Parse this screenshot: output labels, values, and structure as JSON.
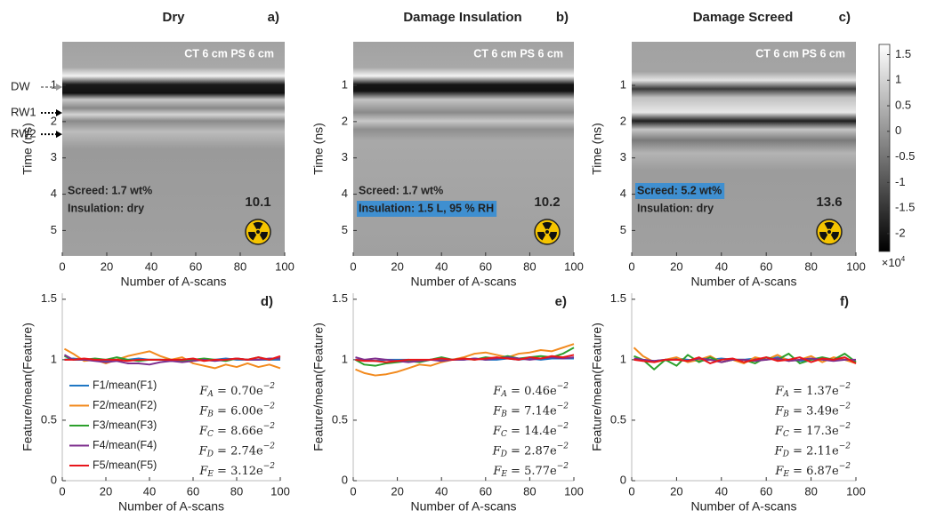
{
  "chart_data": [
    {
      "type": "image",
      "title": "Dry",
      "panel": "a)",
      "xlabel": "Number of A-scans",
      "ylabel": "Time (ns)",
      "xlim": [
        0,
        100
      ],
      "ylim": [
        -0.2,
        5.7
      ],
      "y_reversed": true,
      "xticks": [
        0,
        20,
        40,
        60,
        80,
        100
      ],
      "yticks": [
        1,
        2,
        3,
        4,
        5
      ],
      "settings": "CT 6 cm PS 6 cm",
      "notes": [
        {
          "text": "Screed: 1.7 wt%",
          "highlight": false
        },
        {
          "text": "Insulation: dry",
          "highlight": false
        }
      ],
      "score": 10.1,
      "markers": [
        {
          "label": "DW",
          "time": 1.05,
          "color": "#999999"
        },
        {
          "label": "RW1",
          "time": 1.76,
          "color": "#000000"
        },
        {
          "label": "RW2",
          "time": 2.35,
          "color": "#000000"
        }
      ]
    },
    {
      "type": "image",
      "title": "Damage Insulation",
      "panel": "b)",
      "xlabel": "Number of A-scans",
      "ylabel": "Time (ns)",
      "xlim": [
        0,
        100
      ],
      "ylim": [
        -0.2,
        5.7
      ],
      "y_reversed": true,
      "xticks": [
        0,
        20,
        40,
        60,
        80,
        100
      ],
      "yticks": [
        1,
        2,
        3,
        4,
        5
      ],
      "settings": "CT 6 cm PS 6 cm",
      "notes": [
        {
          "text": "Screed: 1.7 wt%",
          "highlight": false
        },
        {
          "text": "Insulation: 1.5 L, 95 % RH",
          "highlight": true
        }
      ],
      "score": 10.2
    },
    {
      "type": "image",
      "title": "Damage Screed",
      "panel": "c)",
      "xlabel": "Number of A-scans",
      "ylabel": "Time (ns)",
      "xlim": [
        0,
        100
      ],
      "ylim": [
        -0.2,
        5.7
      ],
      "y_reversed": true,
      "xticks": [
        0,
        20,
        40,
        60,
        80,
        100
      ],
      "yticks": [
        1,
        2,
        3,
        4,
        5
      ],
      "settings": "CT 6 cm PS 6 cm",
      "notes": [
        {
          "text": "Screed: 5.2 wt%",
          "highlight": true
        },
        {
          "text": "Insulation: dry",
          "highlight": false
        }
      ],
      "score": 13.6
    },
    {
      "type": "colorbar",
      "ylim": [
        -2.35,
        1.7
      ],
      "yticks": [
        1.5,
        1,
        0.5,
        0,
        -0.5,
        -1,
        -1.5,
        -2
      ],
      "multiplier": {
        "base": "×10",
        "exponent": "4"
      }
    },
    {
      "type": "line",
      "panel": "d)",
      "xlabel": "Number of A-scans",
      "ylabel": "Feature/mean(Feature)",
      "xlim": [
        0,
        100
      ],
      "ylim": [
        0,
        1.55
      ],
      "xticks": [
        0,
        20,
        40,
        60,
        80,
        100
      ],
      "yticks": [
        0,
        0.5,
        1,
        1.5
      ],
      "legend": "lower left",
      "x": [
        1,
        5,
        10,
        15,
        20,
        25,
        30,
        35,
        40,
        45,
        50,
        55,
        60,
        65,
        70,
        75,
        80,
        85,
        90,
        95,
        100
      ],
      "series": [
        {
          "name": "F1/mean(F1)",
          "color": "#1f77c4",
          "values": [
            1.0,
            1.01,
            1.0,
            1.0,
            0.99,
            1.0,
            1.0,
            1.01,
            1.0,
            1.0,
            0.99,
            1.0,
            1.0,
            1.0,
            1.0,
            1.01,
            1.0,
            1.0,
            1.0,
            1.0,
            1.0
          ]
        },
        {
          "name": "F2/mean(F2)",
          "color": "#f28a1e",
          "values": [
            1.09,
            1.05,
            0.99,
            1.0,
            0.97,
            1.0,
            1.03,
            1.05,
            1.07,
            1.03,
            1.0,
            1.02,
            0.97,
            0.95,
            0.93,
            0.96,
            0.94,
            0.97,
            0.94,
            0.96,
            0.93
          ]
        },
        {
          "name": "F3/mean(F3)",
          "color": "#2ca02c",
          "values": [
            1.03,
            1.0,
            1.0,
            1.01,
            1.0,
            1.02,
            1.0,
            0.99,
            1.0,
            1.0,
            1.0,
            0.99,
            1.0,
            1.01,
            1.0,
            0.99,
            1.01,
            1.0,
            1.02,
            1.0,
            1.02
          ]
        },
        {
          "name": "F4/mean(F4)",
          "color": "#7e2f8e",
          "values": [
            1.04,
            1.0,
            1.0,
            0.99,
            0.98,
            0.99,
            0.97,
            0.97,
            0.96,
            0.98,
            0.99,
            0.98,
            0.99,
            1.0,
            0.99,
            1.0,
            1.01,
            1.0,
            1.0,
            1.01,
            1.01
          ]
        },
        {
          "name": "F5/mean(F5)",
          "color": "#e8161b",
          "values": [
            1.0,
            1.0,
            1.01,
            1.0,
            1.0,
            1.0,
            0.99,
            1.0,
            1.0,
            1.0,
            1.0,
            1.0,
            1.01,
            0.99,
            1.0,
            1.0,
            1.01,
            1.0,
            1.02,
            1.0,
            1.03
          ]
        }
      ],
      "annotations": [
        {
          "symbol": "F",
          "subscript": "A",
          "text": " = 0.70e",
          "exponent": "−2"
        },
        {
          "symbol": "F",
          "subscript": "B",
          "text": " = 6.00e",
          "exponent": "−2"
        },
        {
          "symbol": "F",
          "subscript": "C",
          "text": " = 8.66e",
          "exponent": "−2"
        },
        {
          "symbol": "F",
          "subscript": "D",
          "text": " = 2.74e",
          "exponent": "−2"
        },
        {
          "symbol": "F",
          "subscript": "E",
          "text": " = 3.12e",
          "exponent": "−2"
        }
      ]
    },
    {
      "type": "line",
      "panel": "e)",
      "xlabel": "Number of A-scans",
      "ylabel": "Feature/mean(Feature)",
      "xlim": [
        0,
        100
      ],
      "ylim": [
        0,
        1.55
      ],
      "xticks": [
        0,
        20,
        40,
        60,
        80,
        100
      ],
      "yticks": [
        0,
        0.5,
        1,
        1.5
      ],
      "x": [
        1,
        5,
        10,
        15,
        20,
        25,
        30,
        35,
        40,
        45,
        50,
        55,
        60,
        65,
        70,
        75,
        80,
        85,
        90,
        95,
        100
      ],
      "series": [
        {
          "color": "#1f77c4",
          "values": [
            1.0,
            1.0,
            0.99,
            1.0,
            1.0,
            1.0,
            0.99,
            1.0,
            1.0,
            1.0,
            1.0,
            1.01,
            1.0,
            1.0,
            1.01,
            1.0,
            1.01,
            1.0,
            1.01,
            1.01,
            1.01
          ]
        },
        {
          "color": "#f28a1e",
          "values": [
            0.92,
            0.89,
            0.87,
            0.88,
            0.9,
            0.93,
            0.96,
            0.95,
            0.98,
            1.0,
            1.02,
            1.05,
            1.06,
            1.04,
            1.02,
            1.05,
            1.06,
            1.08,
            1.07,
            1.1,
            1.13
          ]
        },
        {
          "color": "#2ca02c",
          "values": [
            1.0,
            0.96,
            0.95,
            0.97,
            0.98,
            0.99,
            0.98,
            1.0,
            1.02,
            1.0,
            1.01,
            1.0,
            1.02,
            1.01,
            1.03,
            1.01,
            1.02,
            1.03,
            1.02,
            1.05,
            1.1
          ]
        },
        {
          "color": "#7e2f8e",
          "values": [
            1.02,
            1.0,
            1.01,
            1.0,
            0.99,
            0.98,
            0.99,
            1.0,
            0.99,
            1.0,
            1.0,
            1.01,
            1.0,
            1.01,
            1.02,
            1.01,
            1.0,
            1.01,
            1.02,
            1.01,
            1.02
          ]
        },
        {
          "color": "#e8161b",
          "values": [
            1.0,
            0.99,
            0.99,
            0.98,
            0.99,
            1.0,
            1.0,
            1.0,
            1.01,
            1.0,
            1.01,
            1.0,
            1.01,
            1.02,
            1.01,
            1.0,
            1.02,
            1.01,
            1.03,
            1.02,
            1.04
          ]
        }
      ],
      "annotations": [
        {
          "symbol": "F",
          "subscript": "A",
          "text": " = 0.46e",
          "exponent": "−2"
        },
        {
          "symbol": "F",
          "subscript": "B",
          "text": " = 7.14e",
          "exponent": "−2"
        },
        {
          "symbol": "F",
          "subscript": "C",
          "text": " = 14.4e",
          "exponent": "−2"
        },
        {
          "symbol": "F",
          "subscript": "D",
          "text": " = 2.87e",
          "exponent": "−2"
        },
        {
          "symbol": "F",
          "subscript": "E",
          "text": " = 5.77e",
          "exponent": "−2"
        }
      ]
    },
    {
      "type": "line",
      "panel": "f)",
      "xlabel": "Number of A-scans",
      "ylabel": "Feature/mean(Feature)",
      "xlim": [
        0,
        100
      ],
      "ylim": [
        0,
        1.55
      ],
      "xticks": [
        0,
        20,
        40,
        60,
        80,
        100
      ],
      "yticks": [
        0,
        0.5,
        1,
        1.5
      ],
      "x": [
        1,
        5,
        10,
        15,
        20,
        25,
        30,
        35,
        40,
        45,
        50,
        55,
        60,
        65,
        70,
        75,
        80,
        85,
        90,
        95,
        100
      ],
      "series": [
        {
          "color": "#1f77c4",
          "values": [
            1.0,
            1.0,
            0.99,
            1.0,
            1.01,
            1.0,
            0.99,
            1.0,
            1.01,
            1.0,
            1.0,
            1.01,
            1.0,
            1.02,
            1.0,
            0.99,
            1.0,
            1.01,
            1.0,
            1.0,
            0.98
          ]
        },
        {
          "color": "#f28a1e",
          "values": [
            1.1,
            1.03,
            0.98,
            1.0,
            1.02,
            0.98,
            1.0,
            1.03,
            0.98,
            1.0,
            0.97,
            1.02,
            1.0,
            1.04,
            0.99,
            1.0,
            1.03,
            0.98,
            1.02,
            1.0,
            0.97
          ]
        },
        {
          "color": "#2ca02c",
          "values": [
            1.03,
            1.0,
            0.92,
            1.0,
            0.95,
            1.04,
            0.98,
            1.02,
            0.98,
            1.0,
            1.0,
            0.97,
            1.02,
            1.0,
            1.05,
            0.97,
            1.0,
            1.02,
            1.0,
            1.05,
            0.98
          ]
        },
        {
          "color": "#7e2f8e",
          "values": [
            1.01,
            1.0,
            0.99,
            1.0,
            1.0,
            0.99,
            1.01,
            1.0,
            0.98,
            1.0,
            1.0,
            0.99,
            1.0,
            1.01,
            0.99,
            1.0,
            1.01,
            1.0,
            0.99,
            1.0,
            1.0
          ]
        },
        {
          "color": "#e8161b",
          "values": [
            1.0,
            0.99,
            0.98,
            1.0,
            1.0,
            0.99,
            1.02,
            0.97,
            1.0,
            1.01,
            0.98,
            1.0,
            1.02,
            0.99,
            1.0,
            1.02,
            0.98,
            1.01,
            1.0,
            1.02,
            0.97
          ]
        }
      ],
      "annotations": [
        {
          "symbol": "F",
          "subscript": "A",
          "text": " = 1.37e",
          "exponent": "−2"
        },
        {
          "symbol": "F",
          "subscript": "B",
          "text": " = 3.49e",
          "exponent": "−2"
        },
        {
          "symbol": "F",
          "subscript": "C",
          "text": " = 17.3e",
          "exponent": "−2"
        },
        {
          "symbol": "F",
          "subscript": "D",
          "text": " = 2.11e",
          "exponent": "−2"
        },
        {
          "symbol": "F",
          "subscript": "E",
          "text": " = 6.87e",
          "exponent": "−2"
        }
      ]
    }
  ]
}
